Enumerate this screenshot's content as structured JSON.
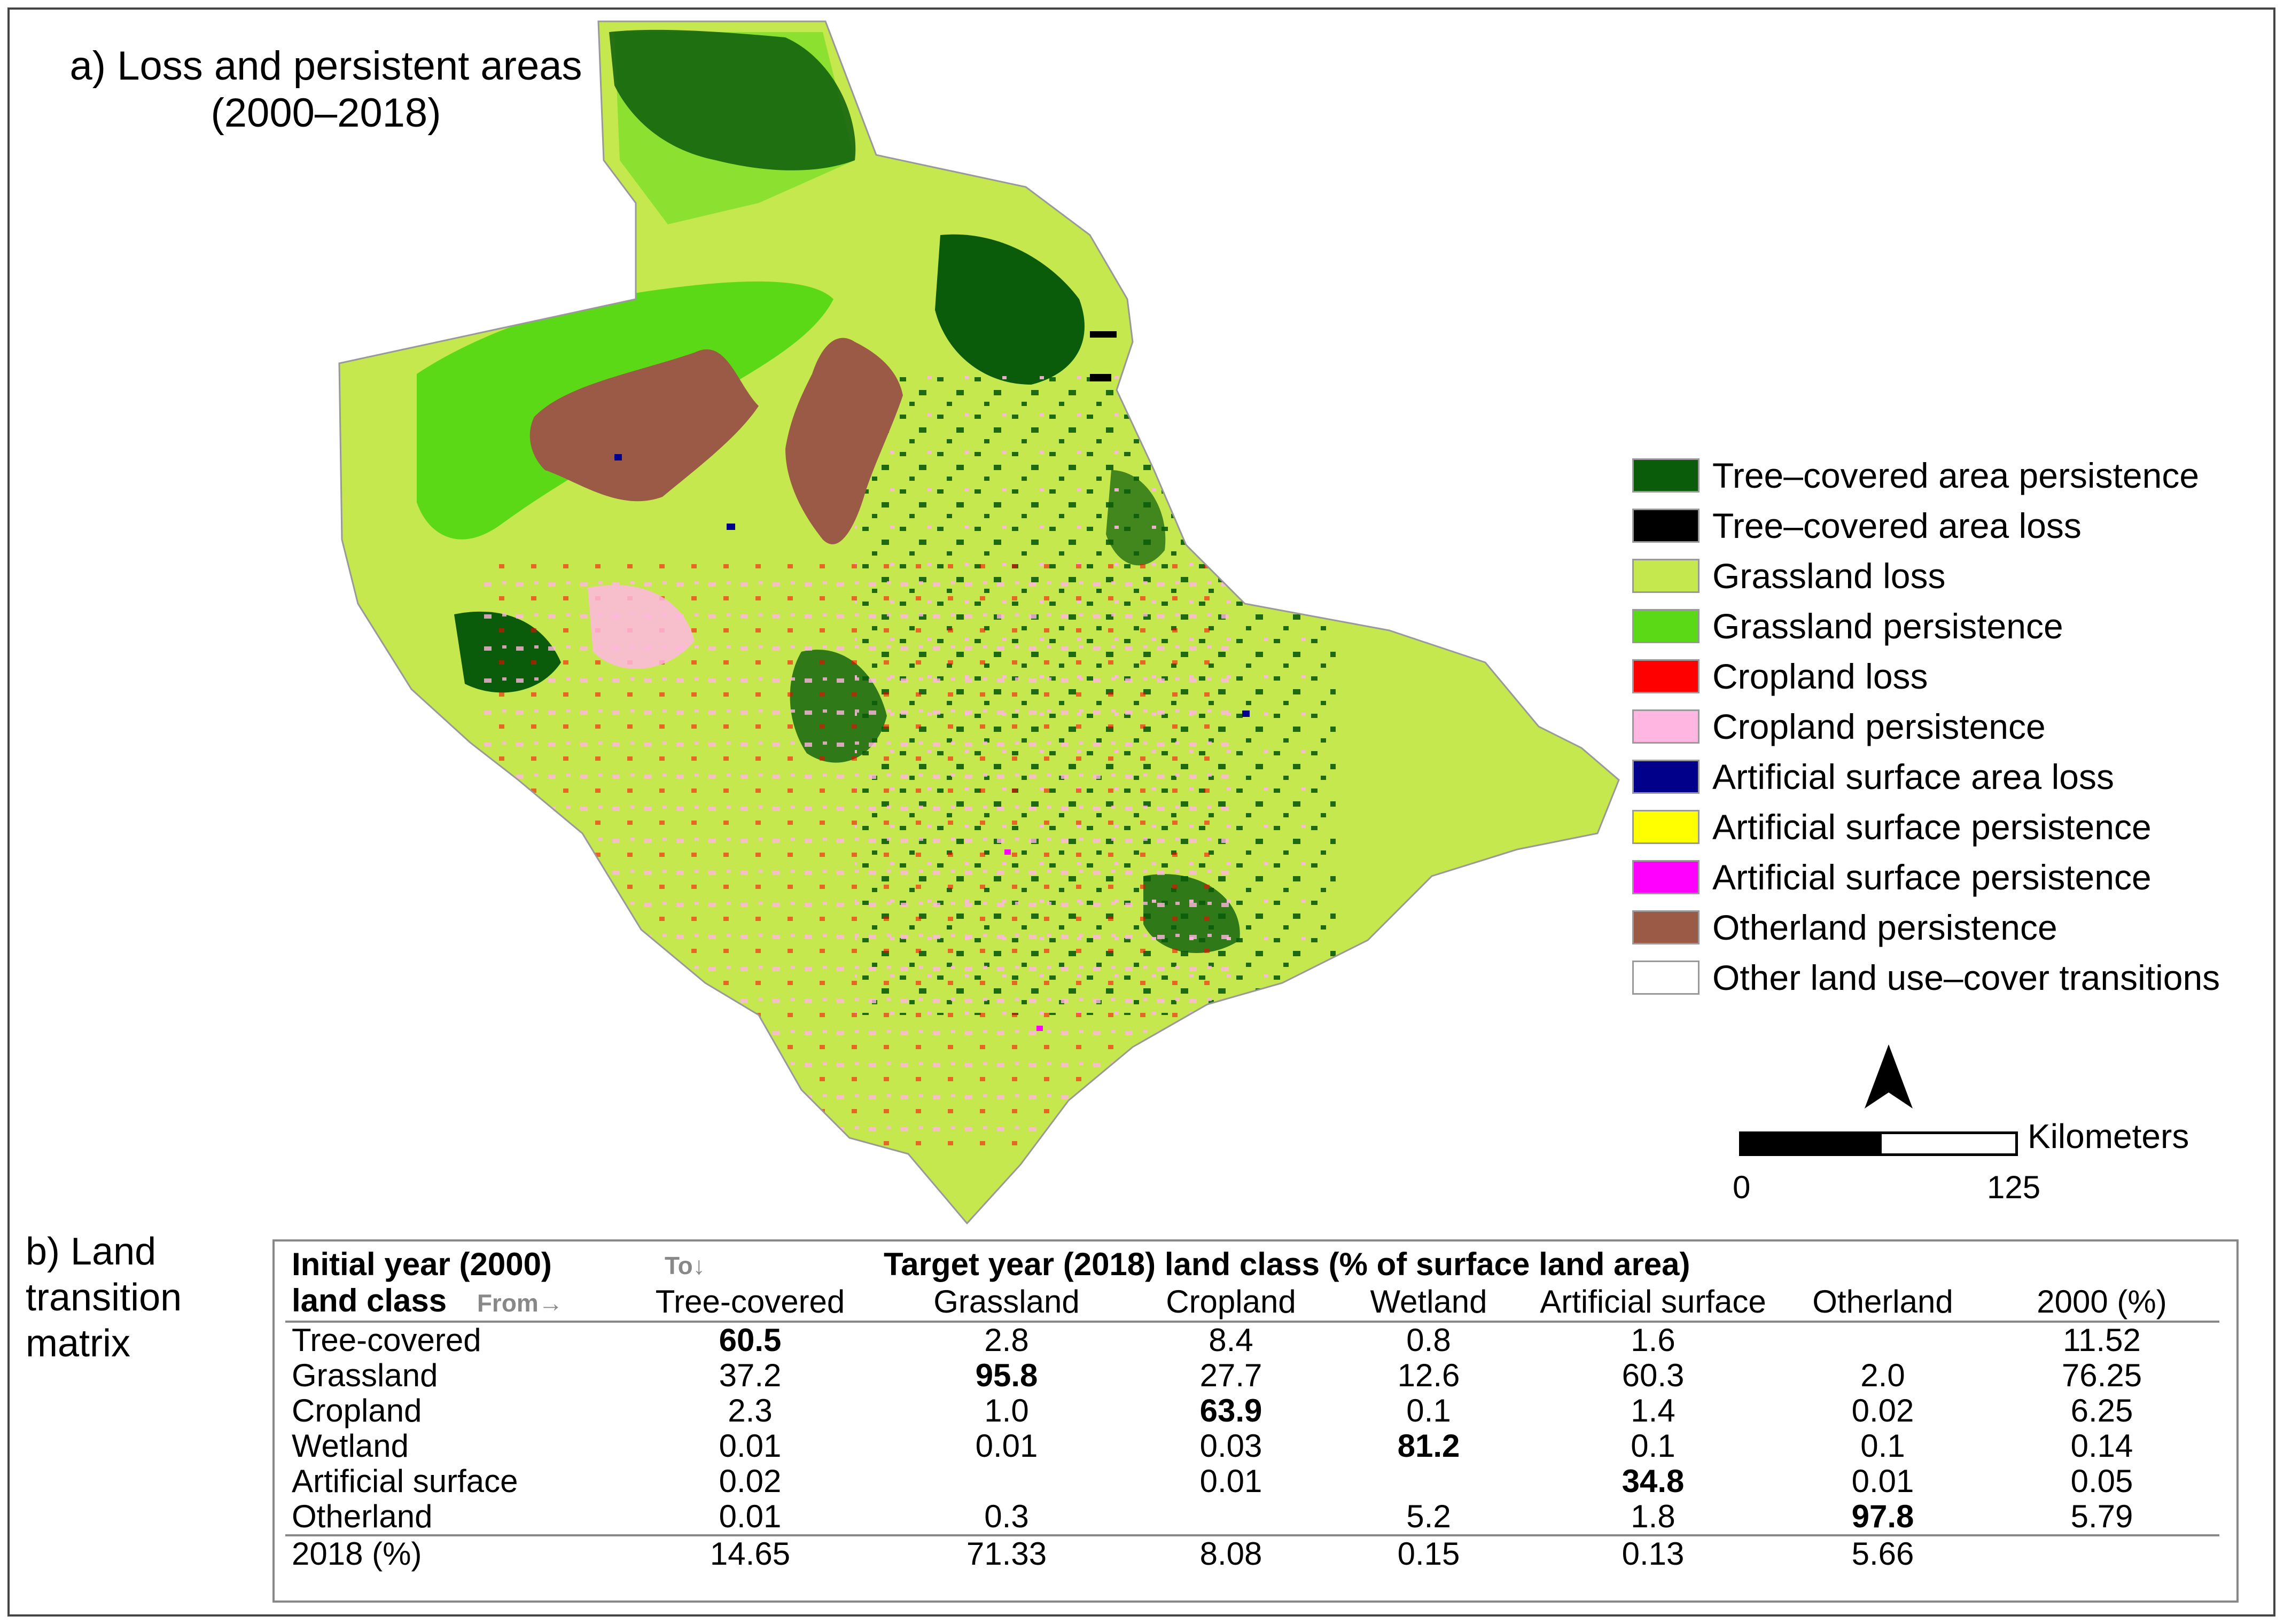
{
  "panel_a": {
    "title_line1": "a) Loss and persistent areas",
    "title_line2": "(2000–2018)"
  },
  "legend": {
    "items": [
      {
        "label": "Tree–covered area persistence",
        "color": "#0a5c0a"
      },
      {
        "label": "Tree–covered area loss",
        "color": "#000000"
      },
      {
        "label": "Grassland loss",
        "color": "#c6e84f"
      },
      {
        "label": "Grassland persistence",
        "color": "#5cd916"
      },
      {
        "label": "Cropland loss",
        "color": "#ff0000"
      },
      {
        "label": "Cropland persistence",
        "color": "#ffb6e0"
      },
      {
        "label": "Artificial surface area loss",
        "color": "#00008b"
      },
      {
        "label": "Artificial surface persistence",
        "color": "#ffff00"
      },
      {
        "label": "Artificial surface persistence",
        "color": "#ff00ff"
      },
      {
        "label": "Otherland persistence",
        "color": "#9a5a46"
      },
      {
        "label": "Other land use–cover transitions",
        "color": "#ffffff"
      }
    ]
  },
  "scale_bar": {
    "unit": "Kilometers",
    "start": "0",
    "end": "125"
  },
  "panel_b": {
    "title_line1": "b) Land",
    "title_line2": "transition",
    "title_line3": "matrix",
    "header_initial_line1": "Initial year (2000)",
    "header_initial_line2": "land class",
    "to_label": "To",
    "from_label": "From",
    "header_target": "Target year (2018) land class (% of surface land area)",
    "columns": [
      "Tree-covered",
      "Grassland",
      "Cropland",
      "Wetland",
      "Artificial surface",
      "Otherland",
      "2000 (%)"
    ],
    "rows": [
      {
        "label": "Tree-covered",
        "cells": [
          "60.5",
          "2.8",
          "8.4",
          "0.8",
          "1.6",
          "",
          "11.52"
        ],
        "bold_index": 0
      },
      {
        "label": "Grassland",
        "cells": [
          "37.2",
          "95.8",
          "27.7",
          "12.6",
          "60.3",
          "2.0",
          "76.25"
        ],
        "bold_index": 1
      },
      {
        "label": "Cropland",
        "cells": [
          "2.3",
          "1.0",
          "63.9",
          "0.1",
          "1.4",
          "0.02",
          "6.25"
        ],
        "bold_index": 2
      },
      {
        "label": "Wetland",
        "cells": [
          "0.01",
          "0.01",
          "0.03",
          "81.2",
          "0.1",
          "0.1",
          "0.14"
        ],
        "bold_index": 3
      },
      {
        "label": "Artificial surface",
        "cells": [
          "0.02",
          "",
          "0.01",
          "",
          "34.8",
          "0.01",
          "0.05"
        ],
        "bold_index": 4
      },
      {
        "label": "Otherland",
        "cells": [
          "0.01",
          "0.3",
          "",
          "5.2",
          "1.8",
          "97.8",
          "5.79"
        ],
        "bold_index": 5
      }
    ],
    "total_row": {
      "label": "2018 (%)",
      "cells": [
        "14.65",
        "71.33",
        "8.08",
        "0.15",
        "0.13",
        "5.66",
        ""
      ]
    }
  }
}
